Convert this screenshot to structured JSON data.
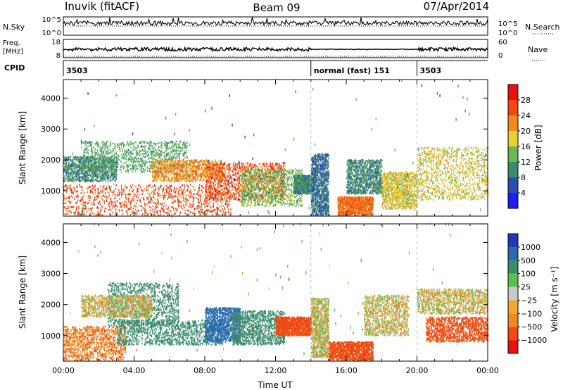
{
  "header": {
    "station": "Inuvik (fitACF)",
    "beam": "Beam 09",
    "date": "07/Apr/2014"
  },
  "noise_panel": {
    "left_label": "N.Sky",
    "left_ticks": [
      "10^5",
      "10^0"
    ],
    "right_ticks": [
      "10^5",
      "10^0"
    ],
    "right_label": "N.Search"
  },
  "freq_panel": {
    "left_label_1": "Freq.",
    "left_label_2": "[MHz]",
    "left_ticks": [
      "18",
      "8"
    ],
    "right_ticks": [
      "60",
      "0"
    ],
    "right_label": "Nave"
  },
  "cpid_panel": {
    "label": "CPID",
    "segments": [
      {
        "start_hour": 0,
        "text": "3503"
      },
      {
        "start_hour": 14,
        "text": "normal (fast) 151"
      },
      {
        "start_hour": 20,
        "text": "3503"
      }
    ]
  },
  "colors": {
    "power": [
      "#1e1ef0",
      "#2a4eb0",
      "#3a8c6c",
      "#6ab850",
      "#e8d030",
      "#f08a1e",
      "#f04a10",
      "#e81010"
    ],
    "velocity": [
      "#e81010",
      "#f04a10",
      "#f08a1e",
      "#f0a830",
      "#c8c8c8",
      "#5ac050",
      "#3a8c6c",
      "#2a6ab0",
      "#1e3ab8"
    ]
  },
  "chart_data": [
    {
      "type": "heatmap",
      "quantity": "power",
      "xlabel": "",
      "ylabel": "Slant Range [km]",
      "xlim": [
        0,
        24
      ],
      "ylim": [
        180,
        4600
      ],
      "yticks": [
        "1000",
        "2000",
        "3000",
        "4000"
      ],
      "colorbar_label": "Power [dB]",
      "colorbar_ticks": [
        "4",
        "8",
        "12",
        "16",
        "20",
        "24",
        "28"
      ],
      "blobs": [
        {
          "t0": 0.0,
          "t1": 9.5,
          "r0": 200,
          "r1": 1200,
          "value": 26
        },
        {
          "t0": 0.0,
          "t1": 3.0,
          "r0": 1300,
          "r1": 2100,
          "value": 10
        },
        {
          "t0": 1.0,
          "t1": 7.0,
          "r0": 1600,
          "r1": 2600,
          "value": 12
        },
        {
          "t0": 5.0,
          "t1": 9.0,
          "r0": 1300,
          "r1": 2000,
          "value": 22
        },
        {
          "t0": 8.0,
          "t1": 12.5,
          "r0": 700,
          "r1": 1900,
          "value": 26
        },
        {
          "t0": 10.0,
          "t1": 13.5,
          "r0": 500,
          "r1": 1700,
          "value": 14
        },
        {
          "t0": 13.0,
          "t1": 14.0,
          "r0": 900,
          "r1": 1500,
          "value": 10
        },
        {
          "t0": 14.0,
          "t1": 15.0,
          "r0": 200,
          "r1": 2200,
          "value": 8
        },
        {
          "t0": 15.5,
          "t1": 17.5,
          "r0": 200,
          "r1": 800,
          "value": 24
        },
        {
          "t0": 16.0,
          "t1": 18.0,
          "r0": 900,
          "r1": 2000,
          "value": 10
        },
        {
          "t0": 18.0,
          "t1": 20.0,
          "r0": 400,
          "r1": 1600,
          "value": 18
        },
        {
          "t0": 20.0,
          "t1": 24.0,
          "r0": 700,
          "r1": 2400,
          "value": 18
        }
      ]
    },
    {
      "type": "heatmap",
      "quantity": "velocity",
      "xlabel": "Time UT",
      "ylabel": "Slant Range [km]",
      "xlim": [
        0,
        24
      ],
      "ylim": [
        180,
        4600
      ],
      "xticks": [
        "00:00",
        "04:00",
        "08:00",
        "12:00",
        "16:00",
        "20:00",
        "00:00"
      ],
      "yticks": [
        "1000",
        "2000",
        "3000",
        "4000"
      ],
      "colorbar_label": "Velocity [m s⁻¹]",
      "colorbar_ticks": [
        "1000",
        "500",
        "100",
        "25",
        "−25",
        "−100",
        "−500",
        "−1000"
      ],
      "blobs": [
        {
          "t0": 0.0,
          "t1": 3.5,
          "r0": 200,
          "r1": 1300,
          "value": -80
        },
        {
          "t0": 2.5,
          "t1": 6.5,
          "r0": 1300,
          "r1": 2700,
          "value": 200
        },
        {
          "t0": 3.0,
          "t1": 9.0,
          "r0": 700,
          "r1": 1500,
          "value": 200
        },
        {
          "t0": 1.0,
          "t1": 5.0,
          "r0": 1600,
          "r1": 2300,
          "value": 0
        },
        {
          "t0": 8.0,
          "t1": 10.0,
          "r0": 800,
          "r1": 1900,
          "value": 600
        },
        {
          "t0": 9.5,
          "t1": 12.5,
          "r0": 700,
          "r1": 1800,
          "value": 200
        },
        {
          "t0": 12.0,
          "t1": 14.0,
          "r0": 1000,
          "r1": 1600,
          "value": -200
        },
        {
          "t0": 14.0,
          "t1": 15.0,
          "r0": 300,
          "r1": 2200,
          "value": 0
        },
        {
          "t0": 15.0,
          "t1": 17.5,
          "r0": 200,
          "r1": 800,
          "value": -200
        },
        {
          "t0": 17.0,
          "t1": 19.5,
          "r0": 1000,
          "r1": 2300,
          "value": 0
        },
        {
          "t0": 20.0,
          "t1": 24.0,
          "r0": 1700,
          "r1": 2500,
          "value": 0
        },
        {
          "t0": 20.5,
          "t1": 24.0,
          "r0": 800,
          "r1": 1600,
          "value": -200
        }
      ]
    }
  ]
}
